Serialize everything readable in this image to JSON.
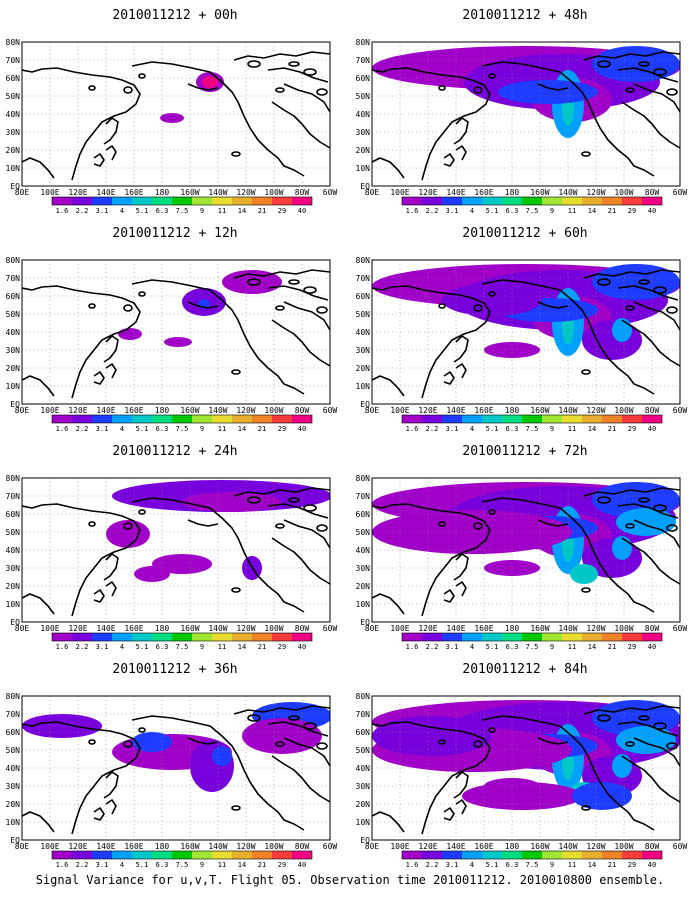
{
  "panels": [
    {
      "title": "2010011212 + 00h",
      "level": 0
    },
    {
      "title": "2010011212 + 48h",
      "level": 4
    },
    {
      "title": "2010011212 + 12h",
      "level": 1
    },
    {
      "title": "2010011212 + 60h",
      "level": 5
    },
    {
      "title": "2010011212 + 24h",
      "level": 2
    },
    {
      "title": "2010011212 + 72h",
      "level": 6
    },
    {
      "title": "2010011212 + 36h",
      "level": 3
    },
    {
      "title": "2010011212 + 84h",
      "level": 7
    }
  ],
  "lat_labels": [
    "80N",
    "70N",
    "60N",
    "50N",
    "40N",
    "30N",
    "20N",
    "10N",
    "EQ"
  ],
  "lon_labels": [
    "80E",
    "100E",
    "120E",
    "140E",
    "160E",
    "180",
    "160W",
    "140W",
    "120W",
    "100W",
    "80W",
    "60W"
  ],
  "colorbar": {
    "labels": [
      "1.6",
      "2.2",
      "3.1",
      "4",
      "5.1",
      "6.3",
      "7.5",
      "9",
      "11",
      "14",
      "21",
      "29",
      "40"
    ],
    "colors": [
      "#a000c8",
      "#7800dc",
      "#1e3cff",
      "#00a0ff",
      "#00c8c8",
      "#00dc82",
      "#00c800",
      "#a0e632",
      "#e6dc32",
      "#e6af2d",
      "#f08228",
      "#fa3c3c",
      "#f00082"
    ]
  },
  "footer": "Signal Variance for u,v,T. Flight 05. Observation time 2010011212. 2010010800 ensemble."
}
